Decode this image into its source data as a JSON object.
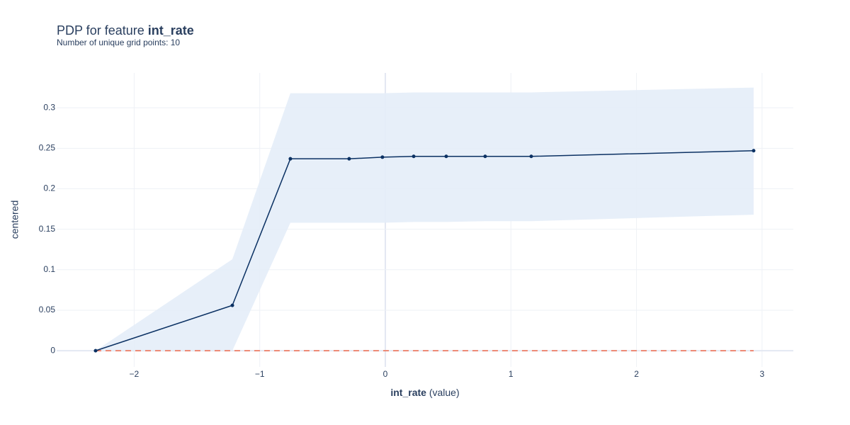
{
  "chart_data": {
    "type": "line",
    "title_prefix": "PDP for feature",
    "title_feature": "int_rate",
    "subtitle": "Number of unique grid points: 10",
    "xlabel_bold": "int_rate",
    "xlabel_rest": "(value)",
    "ylabel": "centered",
    "x": [
      -2.307,
      -1.218,
      -0.756,
      -0.288,
      -0.023,
      0.226,
      0.485,
      0.795,
      1.162,
      2.933
    ],
    "values": [
      0,
      0.056,
      0.237,
      0.237,
      0.239,
      0.24,
      0.24,
      0.24,
      0.24,
      0.247
    ],
    "upper": [
      0,
      0.113,
      0.318,
      0.318,
      0.318,
      0.319,
      0.319,
      0.319,
      0.319,
      0.325
    ],
    "lower": [
      0,
      0,
      0.158,
      0.158,
      0.158,
      0.159,
      0.159,
      0.16,
      0.16,
      0.168
    ],
    "color": "#0b3163",
    "band_color": "#e4edf8",
    "reference_y": 0,
    "reference_color": "#ef6a4c",
    "xlim": [
      -2.617,
      3.249
    ],
    "ylim": [
      -0.02,
      0.343
    ],
    "xticks": [
      {
        "value": -2,
        "label": "−2"
      },
      {
        "value": -1,
        "label": "−1"
      },
      0,
      1,
      2,
      3
    ],
    "yticks": [
      0,
      0.05,
      0.1,
      0.15,
      0.2,
      0.25,
      0.3
    ],
    "grid": true
  }
}
